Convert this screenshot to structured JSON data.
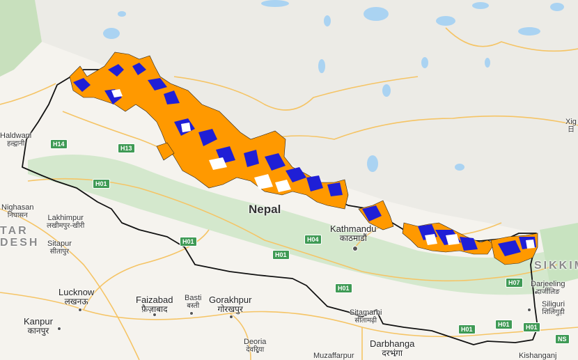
{
  "map": {
    "country": "Nepal",
    "colors": {
      "background": "#f5f3ee",
      "plateau": "#e8e8e4",
      "lakes": "#aad3f2",
      "forest": "#c8e3c0",
      "border": "#111111",
      "roads": "#f5c465",
      "layer_orange": "#ff9900",
      "layer_blue": "#1f1fd6",
      "layer_white": "#ffffff",
      "road_shield": "#3f9a55"
    },
    "places": [
      {
        "id": "kathmandu",
        "name": "Kathmandu",
        "native": "काठमाडौं"
      },
      {
        "id": "lucknow",
        "name": "Lucknow",
        "native": "लखनऊ"
      },
      {
        "id": "kanpur",
        "name": "Kanpur",
        "native": "कानपुर"
      },
      {
        "id": "faizabad",
        "name": "Faizabad",
        "native": "फ़ैज़ाबाद"
      },
      {
        "id": "basti",
        "name": "Basti",
        "native": "बस्ती"
      },
      {
        "id": "gorakhpur",
        "name": "Gorakhpur",
        "native": "गोरखपुर"
      },
      {
        "id": "deoria",
        "name": "Deoria",
        "native": "देवरिया"
      },
      {
        "id": "sitamarhi",
        "name": "Sitamarhi",
        "native": "सीतामढ़ी"
      },
      {
        "id": "darbhanga",
        "name": "Darbhanga",
        "native": "दरभंगा"
      },
      {
        "id": "muzaffarpur",
        "name": "Muzaffarpur",
        "native": ""
      },
      {
        "id": "lakhimpur",
        "name": "Lakhimpur",
        "native": "लखीमपुर-खीरी"
      },
      {
        "id": "sitapur",
        "name": "Sitapur",
        "native": "सीतापुर"
      },
      {
        "id": "nighasan",
        "name": "Nighasan",
        "native": "निघासन"
      },
      {
        "id": "haldwani",
        "name": "Haldwani",
        "native": "हल्द्वानी"
      },
      {
        "id": "darjeeling",
        "name": "Darjeeling",
        "native": "दार्जीलिङ"
      },
      {
        "id": "siliguri",
        "name": "Siliguri",
        "native": "शिलिगुड़ी"
      },
      {
        "id": "kishanganj",
        "name": "Kishanganj",
        "native": ""
      },
      {
        "id": "xigaze",
        "name": "Xig",
        "native": "日"
      }
    ],
    "regions": {
      "sikkim": "SIKKIM",
      "uttar": "TAR",
      "pradesh": "DESH"
    },
    "highways": [
      "H14",
      "H13",
      "H01",
      "H01",
      "H04",
      "H01",
      "H01",
      "H07",
      "H01",
      "H01",
      "H01",
      "NS"
    ]
  }
}
